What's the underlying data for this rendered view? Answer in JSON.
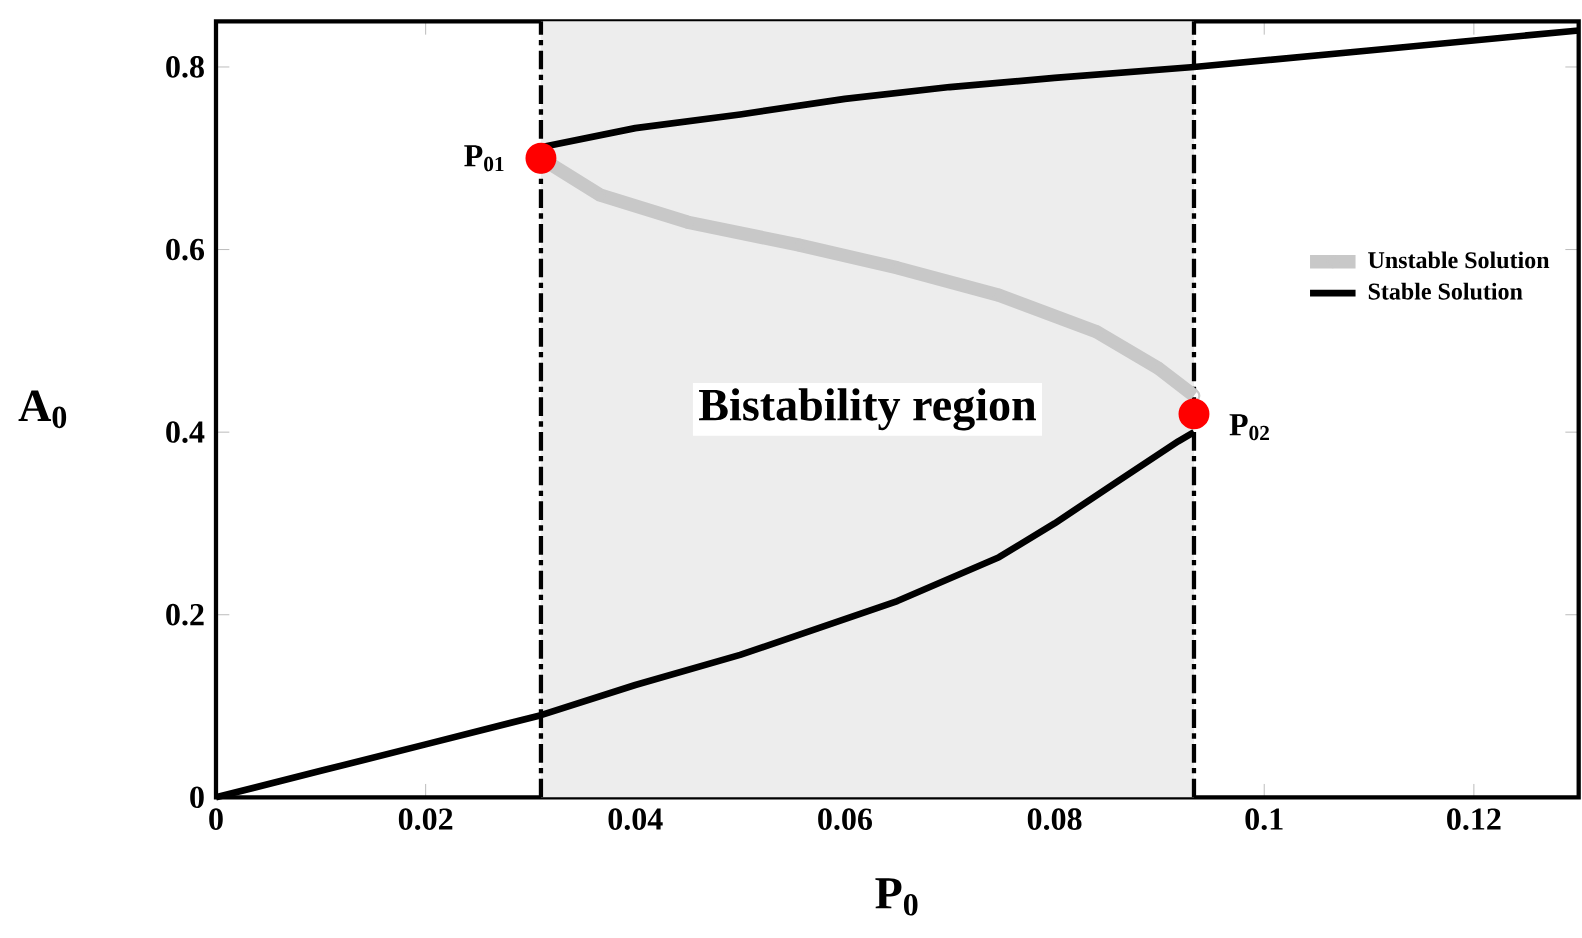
{
  "chart_data": {
    "type": "line",
    "xlabel": "P$_{0}$",
    "ylabel": "A$_{0}$",
    "xlim": [
      0,
      0.13
    ],
    "ylim": [
      0,
      0.85
    ],
    "xticks": [
      0,
      0.02,
      0.04,
      0.06,
      0.08,
      0.1,
      0.12
    ],
    "yticks": [
      0,
      0.2,
      0.4,
      0.6,
      0.8
    ],
    "legend": "right",
    "series": [
      {
        "name": "Unstable Solution",
        "color": "#c8c8c8",
        "marker": "circle",
        "x": [
          0.031,
          0.0366,
          0.045,
          0.0556,
          0.065,
          0.0747,
          0.084,
          0.0899,
          0.0933
        ],
        "values": [
          0.7,
          0.66,
          0.63,
          0.605,
          0.58,
          0.55,
          0.51,
          0.47,
          0.44
        ]
      },
      {
        "name": "Stable Solution",
        "color": "#000000",
        "x": [
          0,
          0.01,
          0.02,
          0.031,
          0.04,
          0.05,
          0.0556,
          0.065,
          0.0747,
          0.08,
          0.086,
          0.0918,
          0.0933
        ],
        "values": [
          0,
          0.029,
          0.058,
          0.09,
          0.123,
          0.156,
          0.178,
          0.215,
          0.263,
          0.3,
          0.346,
          0.39,
          0.4
        ]
      },
      {
        "color": "#000000",
        "x": [
          0.031,
          0.04,
          0.05,
          0.06,
          0.07,
          0.08,
          0.0933,
          0.11,
          0.13
        ],
        "values": [
          0.712,
          0.733,
          0.748,
          0.765,
          0.778,
          0.788,
          0.8,
          0.818,
          0.84
        ]
      },
      {
        "type": "scatter",
        "color": "#ff0000",
        "x": [
          0.031,
          0.0933
        ],
        "values": [
          0.7,
          0.42
        ]
      }
    ],
    "ref_lines": [
      {
        "axis": "x",
        "value": 0.031,
        "line_style": "dashdot",
        "color": "#000000"
      },
      {
        "axis": "x",
        "value": 0.0933,
        "line_style": "dashdot",
        "color": "#000000"
      }
    ],
    "bands": [
      {
        "axis": "x",
        "from": 0.031,
        "to": 0.0933,
        "label": "Bistability region",
        "color": "#ededed"
      }
    ],
    "annotations": [
      {
        "text": "P$_{01}$",
        "x": 0.031,
        "y": 0.7
      },
      {
        "text": "P$_{02}$",
        "x": 0.0933,
        "y": 0.42
      }
    ]
  }
}
